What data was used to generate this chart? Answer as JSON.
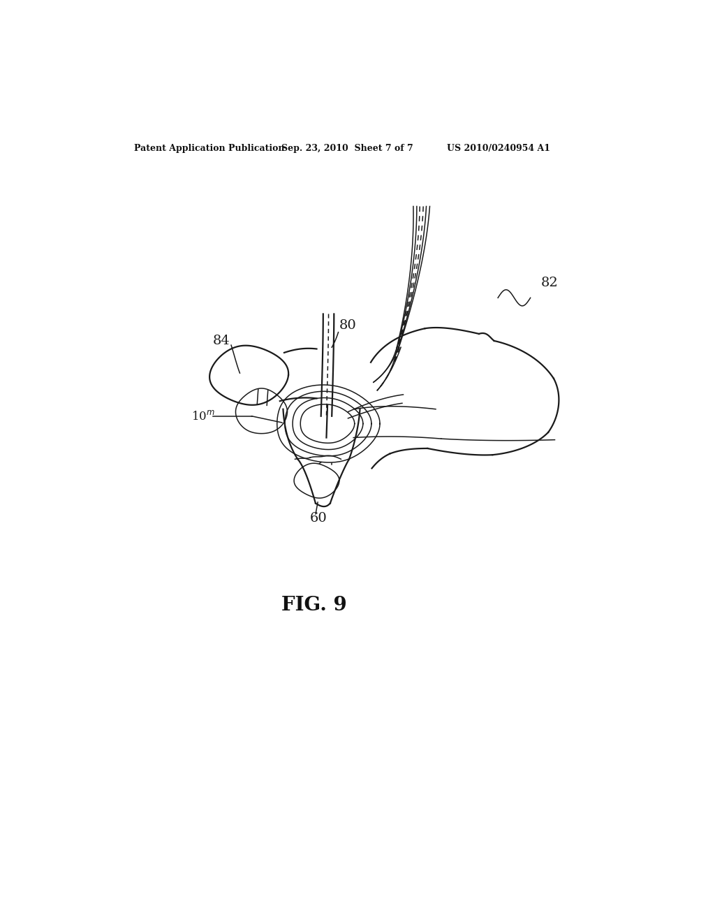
{
  "background_color": "#ffffff",
  "line_color": "#1a1a1a",
  "header_left": "Patent Application Publication",
  "header_center": "Sep. 23, 2010  Sheet 7 of 7",
  "header_right": "US 2010/0240954 A1",
  "fig_label": "FIG. 9"
}
